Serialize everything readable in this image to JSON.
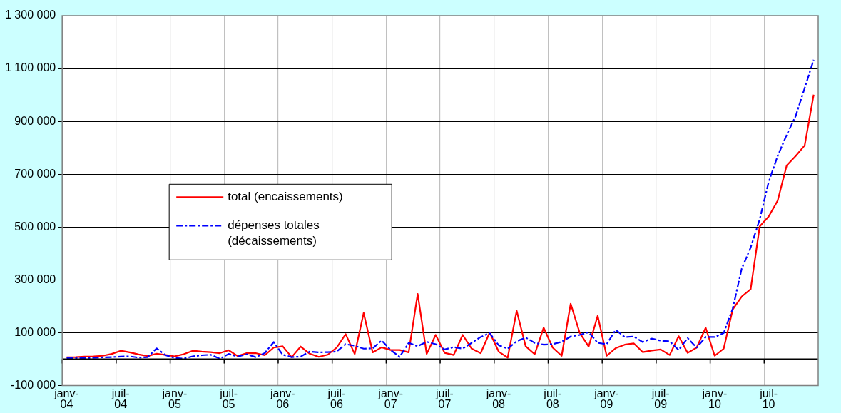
{
  "chart_data": {
    "type": "line",
    "categories": [
      "janv-04",
      null,
      null,
      null,
      null,
      null,
      "juil-04",
      null,
      null,
      null,
      null,
      null,
      "janv-05",
      null,
      null,
      null,
      null,
      null,
      "juil-05",
      null,
      null,
      null,
      null,
      null,
      "janv-06",
      null,
      null,
      null,
      null,
      null,
      "juil-06",
      null,
      null,
      null,
      null,
      null,
      "janv-07",
      null,
      null,
      null,
      null,
      null,
      "juil-07",
      null,
      null,
      null,
      null,
      null,
      "janv-08",
      null,
      null,
      null,
      null,
      null,
      "juil-08",
      null,
      null,
      null,
      null,
      null,
      "janv-09",
      null,
      null,
      null,
      null,
      null,
      "juil-09",
      null,
      null,
      null,
      null,
      null,
      "janv-10",
      null,
      null,
      null,
      null,
      null,
      "juil-10",
      null,
      null,
      null,
      null,
      null
    ],
    "series": [
      {
        "name": "total (encaissements)",
        "color": "#ff0000",
        "line_style": "solid",
        "values": [
          7000,
          8000,
          10000,
          11000,
          13000,
          20000,
          32000,
          26000,
          18000,
          12000,
          21000,
          16000,
          11000,
          19000,
          32000,
          29000,
          27000,
          23000,
          34000,
          12000,
          23000,
          23000,
          15000,
          44000,
          49000,
          8000,
          48000,
          21000,
          9000,
          17000,
          44000,
          95000,
          20000,
          175000,
          26000,
          45000,
          35000,
          35000,
          26000,
          247000,
          20000,
          92000,
          24000,
          16000,
          92000,
          40000,
          23000,
          101000,
          29000,
          6000,
          183000,
          49000,
          19000,
          119000,
          44000,
          13000,
          210000,
          100000,
          48000,
          164000,
          13000,
          42000,
          55000,
          60000,
          27000,
          33000,
          37000,
          16000,
          87000,
          24000,
          44000,
          119000,
          13000,
          40000,
          188000,
          237000,
          265000,
          502000,
          540000,
          600000,
          733000,
          769000,
          809000,
          1001000
        ]
      },
      {
        "name": "dépenses totales (décaissements)",
        "color": "#0000ff",
        "line_style": "dashed",
        "values": [
          4000,
          4000,
          4000,
          5000,
          7000,
          8000,
          10000,
          11000,
          6000,
          8000,
          41000,
          15000,
          5000,
          2000,
          11000,
          15000,
          17000,
          2000,
          20000,
          10000,
          19000,
          8000,
          23000,
          65000,
          17000,
          8000,
          10000,
          29000,
          26000,
          27000,
          29000,
          57000,
          51000,
          40000,
          41000,
          71000,
          35000,
          9000,
          62000,
          49000,
          66000,
          57000,
          37000,
          46000,
          40000,
          62000,
          84000,
          99000,
          53000,
          40000,
          68000,
          82000,
          62000,
          55000,
          57000,
          66000,
          86000,
          92000,
          102000,
          62000,
          57000,
          111000,
          84000,
          86000,
          65000,
          78000,
          70000,
          68000,
          35000,
          80000,
          44000,
          84000,
          84000,
          99000,
          191000,
          342000,
          423000,
          529000,
          671000,
          769000,
          849000,
          920000,
          1026000,
          1133000
        ]
      }
    ],
    "ylim": [
      -100000,
      1300000
    ],
    "yticks": [
      {
        "value": -100000,
        "label": "-100 000"
      },
      {
        "value": 100000,
        "label": "100 000"
      },
      {
        "value": 300000,
        "label": "300 000"
      },
      {
        "value": 500000,
        "label": "500 000"
      },
      {
        "value": 700000,
        "label": "700 000"
      },
      {
        "value": 900000,
        "label": "900 000"
      },
      {
        "value": 1100000,
        "label": "1 100 000"
      },
      {
        "value": 1300000,
        "label": "1 300 000"
      }
    ],
    "grid": true,
    "legend": "center left",
    "marker": "none"
  }
}
